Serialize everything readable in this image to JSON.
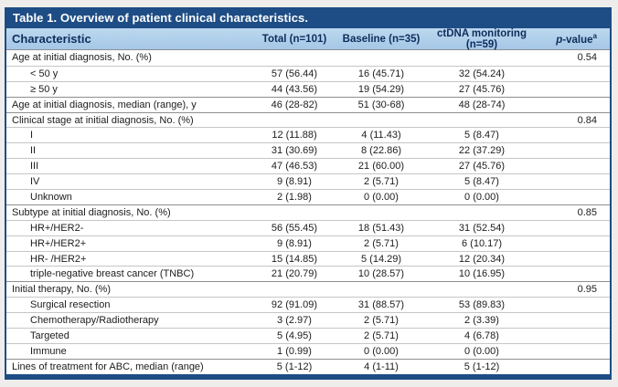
{
  "colors": {
    "page_bg": "#eeedeb",
    "table_blue": "#1e4d85",
    "header_light_blue": "#a4c7e6",
    "header_text": "#0e2d5c"
  },
  "table": {
    "title": "Table 1. Overview of patient clinical characteristics.",
    "header": {
      "characteristic": "Characteristic",
      "total": "Total (n=101)",
      "baseline": "Baseline (n=35)",
      "ctdna": "ctDNA monitoring (n=59)",
      "pvalue_p": "p",
      "pvalue_rest": "-value",
      "pvalue_sup": "a"
    },
    "rows": [
      {
        "label": "Age at initial diagnosis, No. (%)",
        "indent": false,
        "total": "",
        "baseline": "",
        "ctdna": "",
        "pvalue": "0.54"
      },
      {
        "label": "< 50 y",
        "indent": true,
        "total": "57 (56.44)",
        "baseline": "16 (45.71)",
        "ctdna": "32 (54.24)",
        "pvalue": ""
      },
      {
        "label": "≥ 50 y",
        "indent": true,
        "total": "44 (43.56)",
        "baseline": "19 (54.29)",
        "ctdna": "27 (45.76)",
        "pvalue": ""
      },
      {
        "label": "Age at initial diagnosis, median (range), y",
        "indent": false,
        "total": "46 (28-82)",
        "baseline": "51 (30-68)",
        "ctdna": "48 (28-74)",
        "pvalue": ""
      },
      {
        "label": "Clinical stage at initial diagnosis, No. (%)",
        "indent": false,
        "total": "",
        "baseline": "",
        "ctdna": "",
        "pvalue": "0.84"
      },
      {
        "label": "I",
        "indent": true,
        "total": "12 (11.88)",
        "baseline": "4 (11.43)",
        "ctdna": "5 (8.47)",
        "pvalue": ""
      },
      {
        "label": "II",
        "indent": true,
        "total": "31 (30.69)",
        "baseline": "8 (22.86)",
        "ctdna": "22 (37.29)",
        "pvalue": ""
      },
      {
        "label": "III",
        "indent": true,
        "total": "47 (46.53)",
        "baseline": "21 (60.00)",
        "ctdna": "27 (45.76)",
        "pvalue": ""
      },
      {
        "label": "IV",
        "indent": true,
        "total": "9 (8.91)",
        "baseline": "2 (5.71)",
        "ctdna": "5 (8.47)",
        "pvalue": ""
      },
      {
        "label": "Unknown",
        "indent": true,
        "total": "2 (1.98)",
        "baseline": "0 (0.00)",
        "ctdna": "0 (0.00)",
        "pvalue": ""
      },
      {
        "label": "Subtype at initial diagnosis, No. (%)",
        "indent": false,
        "total": "",
        "baseline": "",
        "ctdna": "",
        "pvalue": "0.85"
      },
      {
        "label": "HR+/HER2-",
        "indent": true,
        "total": "56 (55.45)",
        "baseline": "18 (51.43)",
        "ctdna": "31 (52.54)",
        "pvalue": ""
      },
      {
        "label": "HR+/HER2+",
        "indent": true,
        "total": "9 (8.91)",
        "baseline": "2 (5.71)",
        "ctdna": "6 (10.17)",
        "pvalue": ""
      },
      {
        "label": "HR- /HER2+",
        "indent": true,
        "total": "15 (14.85)",
        "baseline": "5 (14.29)",
        "ctdna": "12 (20.34)",
        "pvalue": ""
      },
      {
        "label": "triple-negative breast cancer (TNBC)",
        "indent": true,
        "total": "21 (20.79)",
        "baseline": "10 (28.57)",
        "ctdna": "10 (16.95)",
        "pvalue": ""
      },
      {
        "label": "Initial therapy, No. (%)",
        "indent": false,
        "total": "",
        "baseline": "",
        "ctdna": "",
        "pvalue": "0.95"
      },
      {
        "label": "Surgical resection",
        "indent": true,
        "total": "92 (91.09)",
        "baseline": "31 (88.57)",
        "ctdna": "53 (89.83)",
        "pvalue": ""
      },
      {
        "label": "Chemotherapy/Radiotherapy",
        "indent": true,
        "total": "3 (2.97)",
        "baseline": "2 (5.71)",
        "ctdna": "2 (3.39)",
        "pvalue": ""
      },
      {
        "label": "Targeted",
        "indent": true,
        "total": "5 (4.95)",
        "baseline": "2 (5.71)",
        "ctdna": "4 (6.78)",
        "pvalue": ""
      },
      {
        "label": "Immune",
        "indent": true,
        "total": "1 (0.99)",
        "baseline": "0 (0.00)",
        "ctdna": "0 (0.00)",
        "pvalue": ""
      },
      {
        "label": "Lines of treatment for ABC, median (range)",
        "indent": false,
        "total": "5 (1-12)",
        "baseline": "4 (1-11)",
        "ctdna": "5 (1-12)",
        "pvalue": ""
      }
    ]
  }
}
